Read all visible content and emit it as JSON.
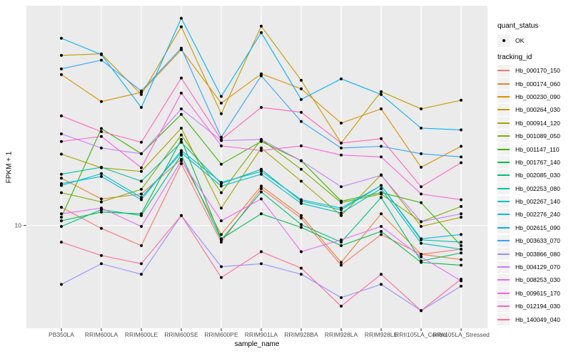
{
  "figure": {
    "y_axis_title": "FPKM + 1",
    "x_axis_title": "sample_name",
    "colors": {
      "panel_bg": "#EBEBEB",
      "grid": "#FFFFFF",
      "axis_text": "#4D4D4D",
      "tick_mark": "#333333",
      "point": "#000000",
      "legend_key_bg": "#F2F2F2"
    }
  },
  "legend": {
    "quant_status": {
      "title": "quant_status",
      "items": [
        {
          "label": "OK"
        }
      ]
    },
    "tracking_id": {
      "title": "tracking_id"
    }
  },
  "chart_data": {
    "type": "line",
    "x_type": "categorical",
    "title": "",
    "xlabel": "sample_name",
    "ylabel": "FPKM + 1",
    "yscale": "log10",
    "y_ticks": [
      10
    ],
    "y_tick_labels": [
      "10"
    ],
    "ylim_log10": [
      0.533,
      1.999
    ],
    "grid": true,
    "legend_position": "right",
    "point_shape": "filled-circle",
    "quant_status": "OK",
    "categories": [
      "PB350LA",
      "RRIM600LA",
      "RRIM600LE",
      "RRIM600SE",
      "RRIM600PE",
      "RRIM901LA",
      "RRIM928BA",
      "RRIM928LA",
      "RRIM928LE",
      "RRII105LA_Control",
      "RRII105LA_Stressed"
    ],
    "series": [
      {
        "tracking_id": "Hb_000170_150",
        "color": "#F8766D",
        "values": [
          12.1,
          9.7,
          8.1,
          19.1,
          8.4,
          14.7,
          10.8,
          6.6,
          9.1,
          7.4,
          7.8
        ]
      },
      {
        "tracking_id": "Hb_000174_060",
        "color": "#EA8331",
        "values": [
          16.4,
          13.2,
          13.9,
          20.0,
          9.1,
          15.1,
          11.1,
          6.8,
          11.3,
          7.4,
          7.0
        ]
      },
      {
        "tracking_id": "Hb_000230_090",
        "color": "#D89000",
        "values": [
          48.5,
          36.6,
          40.3,
          63.0,
          36.0,
          48.9,
          41.8,
          29.2,
          33.9,
          18.4,
          22.9
        ]
      },
      {
        "tracking_id": "Hb_000264_030",
        "color": "#C09B00",
        "values": [
          59.3,
          60.3,
          39.4,
          80.0,
          32.2,
          80.5,
          45.7,
          23.7,
          40.6,
          33.9,
          37.1
        ]
      },
      {
        "tracking_id": "Hb_000914_120",
        "color": "#A3A500",
        "values": [
          21.1,
          18.3,
          17.6,
          27.7,
          12.0,
          22.5,
          15.9,
          11.1,
          17.0,
          9.9,
          10.9
        ]
      },
      {
        "tracking_id": "Hb_001089_050",
        "color": "#7CAE00",
        "values": [
          14.1,
          12.8,
          14.6,
          25.8,
          14.1,
          24.6,
          18.0,
          12.7,
          13.9,
          10.4,
          12.2
        ]
      },
      {
        "tracking_id": "Hb_001147_110",
        "color": "#39B600",
        "values": [
          10.9,
          27.6,
          21.2,
          32.0,
          19.0,
          24.1,
          19.7,
          12.9,
          14.1,
          12.7,
          8.1
        ]
      },
      {
        "tracking_id": "Hb_001767_140",
        "color": "#00BB4E",
        "values": [
          10.5,
          11.5,
          11.3,
          24.6,
          8.7,
          11.3,
          9.8,
          8.1,
          9.4,
          6.8,
          6.6
        ]
      },
      {
        "tracking_id": "Hb_002085_030",
        "color": "#00BF7D",
        "values": [
          9.9,
          11.8,
          11.1,
          20.9,
          8.6,
          14.2,
          10.1,
          8.4,
          13.4,
          6.9,
          7.5
        ]
      },
      {
        "tracking_id": "Hb_002253_080",
        "color": "#00C1A3",
        "values": [
          17.1,
          18.4,
          15.9,
          23.9,
          15.5,
          18.0,
          12.9,
          11.8,
          15.2,
          8.6,
          8.4
        ]
      },
      {
        "tracking_id": "Hb_002267_140",
        "color": "#00BFC4",
        "values": [
          15.2,
          17.2,
          13.4,
          21.4,
          15.1,
          17.1,
          12.6,
          11.4,
          14.7,
          8.3,
          7.8
        ]
      },
      {
        "tracking_id": "Hb_002276_240",
        "color": "#00BAE0",
        "values": [
          15.5,
          16.7,
          13.1,
          21.9,
          15.7,
          17.6,
          13.1,
          12.0,
          15.2,
          8.7,
          9.1
        ]
      },
      {
        "tracking_id": "Hb_002615_090",
        "color": "#00B0F6",
        "values": [
          71.0,
          59.8,
          34.4,
          87.5,
          38.6,
          75.3,
          37.4,
          46.4,
          39.4,
          27.7,
          27.2
        ]
      },
      {
        "tracking_id": "Hb_003633_070",
        "color": "#35A2FF",
        "values": [
          51.5,
          56.4,
          40.9,
          64.0,
          25.2,
          47.9,
          29.7,
          22.5,
          22.9,
          21.2,
          20.5
        ]
      },
      {
        "tracking_id": "Hb_003866_080",
        "color": "#9590FF",
        "values": [
          5.4,
          6.7,
          6.0,
          11.1,
          6.5,
          6.7,
          6.0,
          4.7,
          5.4,
          4.1,
          5.3
        ]
      },
      {
        "tracking_id": "Hb_004129_070",
        "color": "#C77CFF",
        "values": [
          26.1,
          22.5,
          21.2,
          33.9,
          24.3,
          24.6,
          19.7,
          15.0,
          16.9,
          10.4,
          11.3
        ]
      },
      {
        "tracking_id": "Hb_008253_030",
        "color": "#E76BF3",
        "values": [
          11.3,
          12.0,
          9.9,
          19.7,
          10.5,
          13.2,
          7.6,
          8.6,
          9.9,
          7.2,
          5.6
        ]
      },
      {
        "tracking_id": "Hb_009615_170",
        "color": "#FA62DB",
        "values": [
          24.1,
          25.4,
          18.3,
          40.0,
          23.0,
          21.9,
          23.0,
          20.9,
          20.5,
          13.9,
          13.1
        ]
      },
      {
        "tracking_id": "Hb_012194_030",
        "color": "#FF62BC",
        "values": [
          31.5,
          26.7,
          23.9,
          46.8,
          24.6,
          34.4,
          32.7,
          23.7,
          24.8,
          15.0,
          19.3
        ]
      },
      {
        "tracking_id": "Hb_140049_040",
        "color": "#FF6A98",
        "values": [
          8.4,
          7.3,
          6.7,
          11.1,
          5.8,
          7.6,
          6.4,
          4.3,
          6.0,
          4.1,
          5.7
        ]
      }
    ]
  }
}
